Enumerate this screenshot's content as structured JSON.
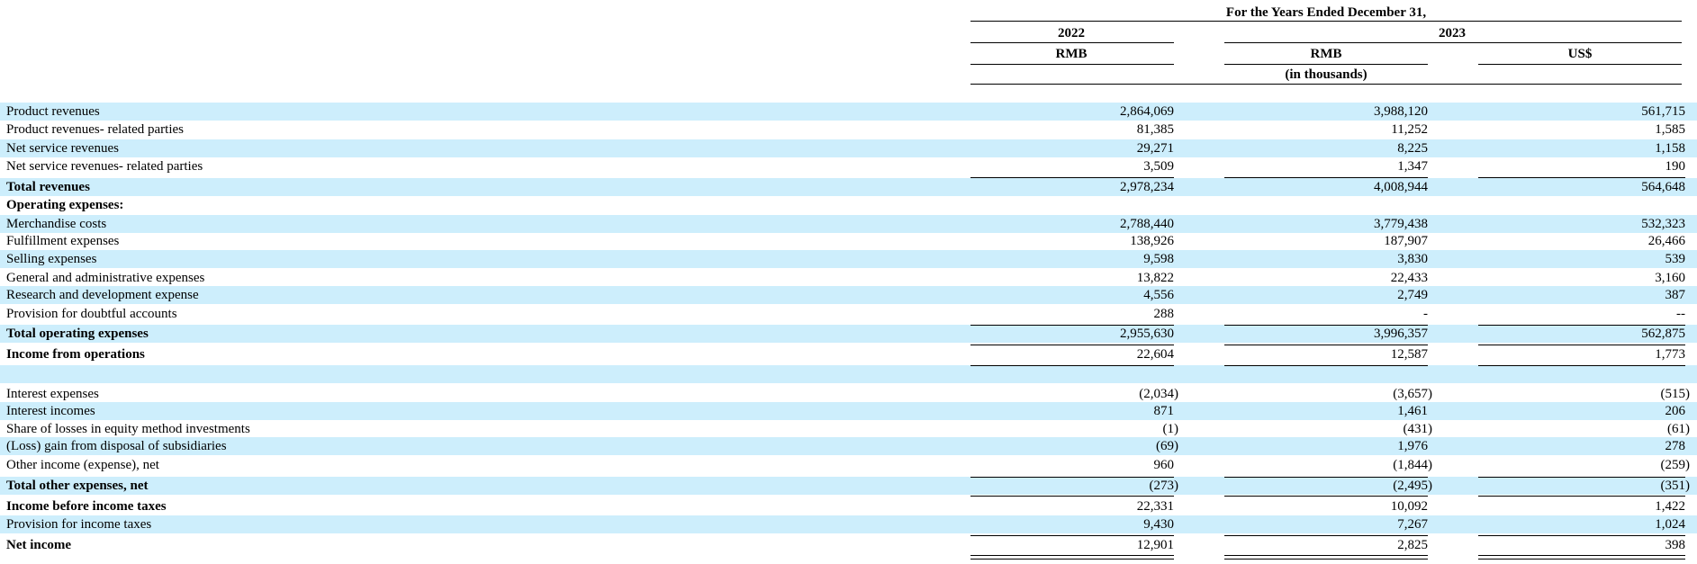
{
  "header": {
    "title": "For the Years Ended December 31,",
    "years": [
      "2022",
      "2023"
    ],
    "currencies": [
      "RMB",
      "RMB",
      "US$"
    ],
    "unit": "(in thousands)"
  },
  "rows": [
    {
      "label": "Product revenues",
      "values": [
        "2,864,069",
        "3,988,120",
        "561,715"
      ]
    },
    {
      "label": "Product revenues- related parties",
      "values": [
        "81,385",
        "11,252",
        "1,585"
      ]
    },
    {
      "label": "Net service revenues",
      "values": [
        "29,271",
        "8,225",
        "1,158"
      ]
    },
    {
      "label": "Net service revenues- related parties",
      "values": [
        "3,509",
        "1,347",
        "190"
      ]
    },
    {
      "label": "Total revenues",
      "values": [
        "2,978,234",
        "4,008,944",
        "564,648"
      ]
    },
    {
      "label": "Operating expenses:"
    },
    {
      "label": "Merchandise costs",
      "values": [
        "2,788,440",
        "3,779,438",
        "532,323"
      ]
    },
    {
      "label": "Fulfillment expenses",
      "values": [
        "138,926",
        "187,907",
        "26,466"
      ]
    },
    {
      "label": "Selling expenses",
      "values": [
        "9,598",
        "3,830",
        "539"
      ]
    },
    {
      "label": "General and administrative expenses",
      "values": [
        "13,822",
        "22,433",
        "3,160"
      ]
    },
    {
      "label": "Research and development expense",
      "values": [
        "4,556",
        "2,749",
        "387"
      ]
    },
    {
      "label": "Provision for doubtful accounts",
      "values": [
        "288",
        "-",
        "--"
      ]
    },
    {
      "label": "Total operating expenses",
      "values": [
        "2,955,630",
        "3,996,357",
        "562,875"
      ]
    },
    {
      "label": "Income from operations",
      "values": [
        "22,604",
        "12,587",
        "1,773"
      ]
    },
    {
      "label": "Interest expenses",
      "values": [
        "(2,034)",
        "(3,657)",
        "(515)"
      ]
    },
    {
      "label": "Interest incomes",
      "values": [
        "871",
        "1,461",
        "206"
      ]
    },
    {
      "label": "Share of losses in equity method investments",
      "values": [
        "(1)",
        "(431)",
        "(61)"
      ]
    },
    {
      "label": "(Loss) gain from disposal of subsidiaries",
      "values": [
        "(69)",
        "1,976",
        "278"
      ]
    },
    {
      "label": "Other income (expense), net",
      "values": [
        "960",
        "(1,844)",
        "(259)"
      ]
    },
    {
      "label": "Total other expenses, net",
      "values": [
        "(273)",
        "(2,495)",
        "(351)"
      ]
    },
    {
      "label": "Income before income taxes",
      "values": [
        "22,331",
        "10,092",
        "1,422"
      ]
    },
    {
      "label": "Provision for income taxes",
      "values": [
        "9,430",
        "7,267",
        "1,024"
      ]
    },
    {
      "label": "Net income",
      "values": [
        "12,901",
        "2,825",
        "398"
      ]
    }
  ]
}
